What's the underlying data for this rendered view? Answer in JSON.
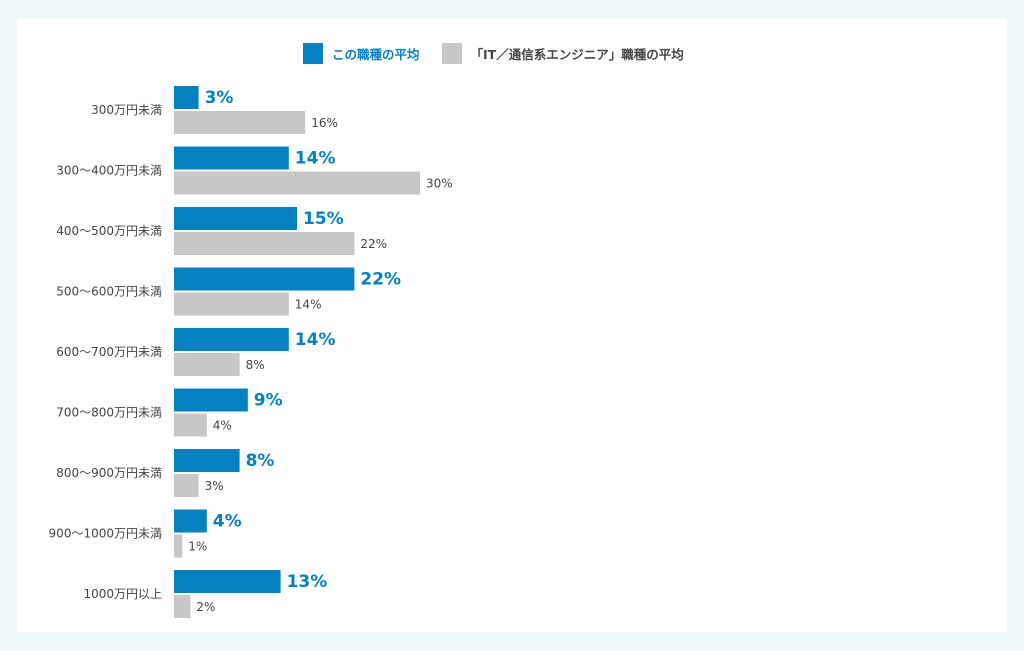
{
  "colors": {
    "primary": "#0580c1",
    "secondary": "#c9c6c6"
  },
  "legend": {
    "primary_label": "この職種の平均",
    "secondary_label": "「IT／通信系エンジニア」職種の平均"
  },
  "chart_data": {
    "type": "bar",
    "orientation": "horizontal",
    "categories": [
      "300万円未満",
      "300〜400万円未満",
      "400〜500万円未満",
      "500〜600万円未満",
      "600〜700万円未満",
      "700〜800万円未満",
      "800〜900万円未満",
      "900〜1000万円未満",
      "1000万円以上"
    ],
    "series": [
      {
        "name": "この職種の平均",
        "values": [
          3,
          14,
          15,
          22,
          14,
          9,
          8,
          4,
          13
        ]
      },
      {
        "name": "「IT／通信系エンジニア」職種の平均",
        "values": [
          16,
          30,
          22,
          14,
          8,
          4,
          3,
          1,
          2
        ]
      }
    ],
    "value_suffix": "%",
    "xlim": [
      0,
      100
    ],
    "grid": false,
    "legend_position": "top-center"
  }
}
